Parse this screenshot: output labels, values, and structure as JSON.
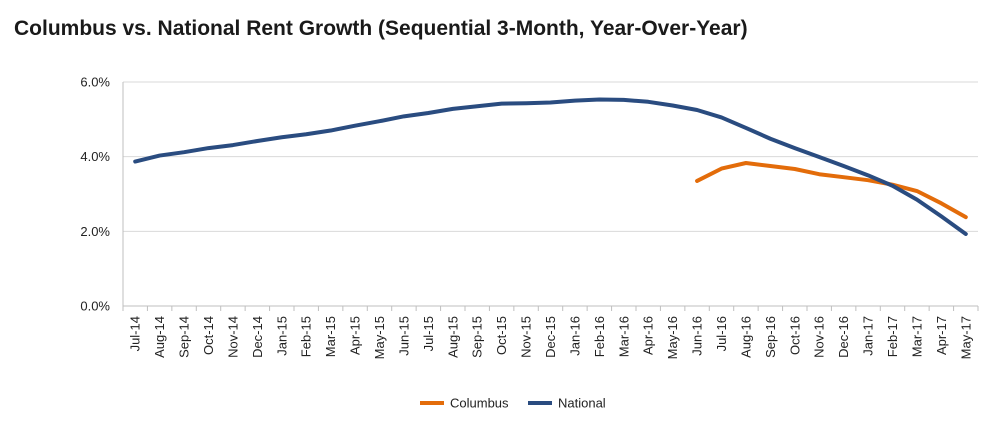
{
  "chart_data": {
    "type": "line",
    "title": "Columbus vs. National Rent Growth (Sequential 3-Month, Year-Over-Year)",
    "xlabel": "",
    "ylabel": "",
    "ylim": [
      0,
      6
    ],
    "y_ticks": [
      "0.0%",
      "2.0%",
      "4.0%",
      "6.0%"
    ],
    "y_tick_values": [
      0,
      2,
      4,
      6
    ],
    "grid": "horizontal",
    "legend_position": "bottom",
    "categories": [
      "Jul-14",
      "Aug-14",
      "Sep-14",
      "Oct-14",
      "Nov-14",
      "Dec-14",
      "Jan-15",
      "Feb-15",
      "Mar-15",
      "Apr-15",
      "May-15",
      "Jun-15",
      "Jul-15",
      "Aug-15",
      "Sep-15",
      "Oct-15",
      "Nov-15",
      "Dec-15",
      "Jan-16",
      "Feb-16",
      "Mar-16",
      "Apr-16",
      "May-16",
      "Jun-16",
      "Jul-16",
      "Aug-16",
      "Sep-16",
      "Oct-16",
      "Nov-16",
      "Dec-16",
      "Jan-17",
      "Feb-17",
      "Mar-17",
      "Apr-17",
      "May-17"
    ],
    "series": [
      {
        "name": "Columbus",
        "color": "#E36C0A",
        "values": [
          null,
          null,
          null,
          null,
          null,
          null,
          null,
          null,
          null,
          null,
          null,
          null,
          null,
          null,
          null,
          null,
          null,
          null,
          null,
          null,
          null,
          null,
          null,
          3.35,
          3.68,
          3.83,
          3.75,
          3.67,
          3.53,
          3.45,
          3.37,
          3.25,
          3.08,
          2.75,
          2.38
        ]
      },
      {
        "name": "National",
        "color": "#2A4C80",
        "values": [
          3.87,
          4.03,
          4.12,
          4.23,
          4.31,
          4.42,
          4.52,
          4.6,
          4.7,
          4.83,
          4.95,
          5.08,
          5.17,
          5.28,
          5.35,
          5.42,
          5.43,
          5.45,
          5.5,
          5.53,
          5.52,
          5.47,
          5.37,
          5.25,
          5.05,
          4.77,
          4.48,
          4.23,
          3.99,
          3.75,
          3.5,
          3.22,
          2.85,
          2.4,
          1.93
        ]
      }
    ]
  }
}
